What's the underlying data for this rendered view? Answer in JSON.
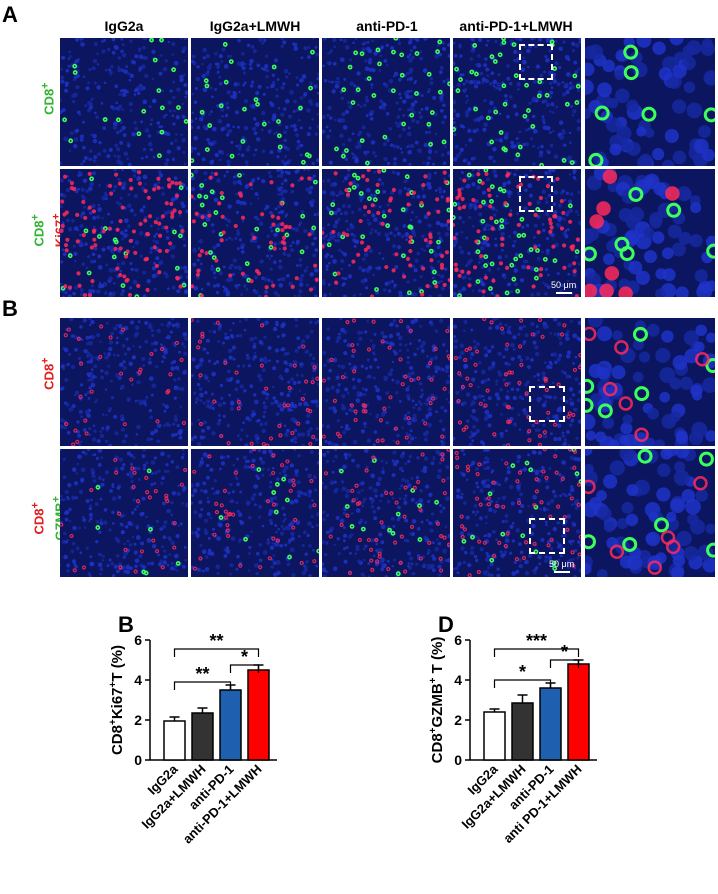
{
  "panel_a": {
    "label": "A",
    "columns": [
      "IgG2a",
      "IgG2a+LMWH",
      "anti-PD-1",
      "anti-PD-1+LMWH"
    ],
    "row1_label": {
      "line1": "CD8",
      "sup1": "+"
    },
    "row2_label": {
      "line1": "CD8",
      "sup1": "+",
      "line2": "Ki67",
      "sup2": "+"
    },
    "scale_bar": "50 μm"
  },
  "panel_b": {
    "label": "B",
    "row1_label": {
      "line1": "CD8",
      "sup1": "+"
    },
    "row2_label": {
      "line1": "CD8",
      "sup1": "+",
      "line2": "GZMB",
      "sup2": "+"
    },
    "scale_bar": "50 μm"
  },
  "colors": {
    "nuclei": "#0b1560",
    "cd8_green": "#3cff5a",
    "ki67_red": "#ff2a5a",
    "bar_white": "#ffffff",
    "bar_dark": "#333333",
    "bar_blue": "#1f5fb0",
    "bar_red": "#ff0000"
  },
  "chart_data": [
    {
      "panel_label": "B",
      "type": "bar",
      "categories": [
        "IgG2a",
        "IgG2a+LMWH",
        "anti-PD-1",
        "anti-PD-1+LMWH"
      ],
      "values": [
        1.95,
        2.35,
        3.5,
        4.5
      ],
      "errors": [
        0.2,
        0.25,
        0.25,
        0.25
      ],
      "bar_colors": [
        "#ffffff",
        "#333333",
        "#1f5fb0",
        "#ff0000"
      ],
      "ylabel": {
        "p1": "CD8",
        "s1": "+",
        "p2": "Ki67",
        "s2": "+",
        "p3": "T (%)"
      },
      "ylim": [
        0,
        6
      ],
      "yticks": [
        "0",
        "2",
        "4",
        "6"
      ],
      "significance": [
        {
          "from": 0,
          "to": 3,
          "label": "**",
          "level": 5.55
        },
        {
          "from": 2,
          "to": 3,
          "label": "*",
          "level": 4.75
        },
        {
          "from": 0,
          "to": 2,
          "label": "**",
          "level": 3.9
        }
      ]
    },
    {
      "panel_label": "D",
      "type": "bar",
      "categories": [
        "IgG2a",
        "IgG2a+LMWH",
        "anti-PD-1",
        "anti PD-1+LMWH"
      ],
      "values": [
        2.4,
        2.85,
        3.6,
        4.8
      ],
      "errors": [
        0.15,
        0.4,
        0.25,
        0.2
      ],
      "bar_colors": [
        "#ffffff",
        "#333333",
        "#1f5fb0",
        "#ff0000"
      ],
      "ylabel": {
        "p1": "CD8",
        "s1": "+",
        "p2": "GZMB",
        "s2": "+",
        "p3": " T (%)"
      },
      "ylim": [
        0,
        6
      ],
      "yticks": [
        "0",
        "2",
        "4",
        "6"
      ],
      "significance": [
        {
          "from": 0,
          "to": 3,
          "label": "***",
          "level": 5.55
        },
        {
          "from": 2,
          "to": 3,
          "label": "*",
          "level": 5.0
        },
        {
          "from": 0,
          "to": 2,
          "label": "*",
          "level": 4.0
        }
      ]
    }
  ]
}
